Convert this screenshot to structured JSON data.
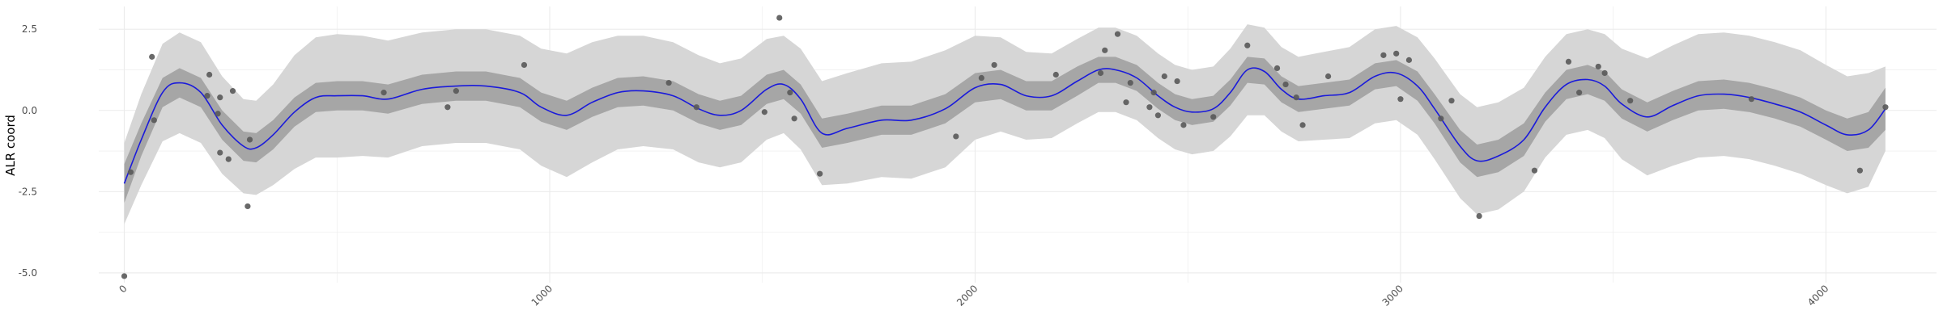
{
  "chart_data": {
    "type": "scatter",
    "title": "",
    "xlabel": "",
    "ylabel": "ALR coord",
    "xlim": [
      -60,
      4260
    ],
    "ylim": [
      -5.3,
      3.2
    ],
    "x_ticks": [
      0,
      1000,
      2000,
      3000,
      4000
    ],
    "x_tick_labels": [
      "0",
      "1000",
      "2000",
      "3000",
      "4000"
    ],
    "y_ticks": [
      -5.0,
      -2.5,
      0.0,
      2.5
    ],
    "y_tick_labels": [
      "-5.0",
      "-2.5",
      "0.0",
      "2.5"
    ],
    "grid": true,
    "legend": "none",
    "colors": {
      "points": "#595959",
      "fit_line": "#1a1adb",
      "inner_band": "#a6a6a6",
      "outer_band": "#d6d6d6",
      "grid": "#ebebeb"
    },
    "points": [
      {
        "x": 0,
        "y": -5.1
      },
      {
        "x": 15,
        "y": -1.9
      },
      {
        "x": 65,
        "y": 1.65
      },
      {
        "x": 70,
        "y": -0.3
      },
      {
        "x": 200,
        "y": 1.1
      },
      {
        "x": 195,
        "y": 0.45
      },
      {
        "x": 220,
        "y": -0.1
      },
      {
        "x": 225,
        "y": -1.3
      },
      {
        "x": 225,
        "y": 0.4
      },
      {
        "x": 245,
        "y": -1.5
      },
      {
        "x": 255,
        "y": 0.6
      },
      {
        "x": 290,
        "y": -2.95
      },
      {
        "x": 295,
        "y": -0.9
      },
      {
        "x": 610,
        "y": 0.55
      },
      {
        "x": 760,
        "y": 0.1
      },
      {
        "x": 780,
        "y": 0.6
      },
      {
        "x": 940,
        "y": 1.4
      },
      {
        "x": 1280,
        "y": 0.85
      },
      {
        "x": 1345,
        "y": 0.1
      },
      {
        "x": 1505,
        "y": -0.05
      },
      {
        "x": 1540,
        "y": 2.85
      },
      {
        "x": 1565,
        "y": 0.55
      },
      {
        "x": 1575,
        "y": -0.25
      },
      {
        "x": 1635,
        "y": -1.95
      },
      {
        "x": 1955,
        "y": -0.8
      },
      {
        "x": 2015,
        "y": 1.0
      },
      {
        "x": 2045,
        "y": 1.4
      },
      {
        "x": 2190,
        "y": 1.1
      },
      {
        "x": 2295,
        "y": 1.15
      },
      {
        "x": 2305,
        "y": 1.85
      },
      {
        "x": 2335,
        "y": 2.35
      },
      {
        "x": 2355,
        "y": 0.25
      },
      {
        "x": 2365,
        "y": 0.85
      },
      {
        "x": 2410,
        "y": 0.1
      },
      {
        "x": 2420,
        "y": 0.55
      },
      {
        "x": 2430,
        "y": -0.15
      },
      {
        "x": 2445,
        "y": 1.05
      },
      {
        "x": 2475,
        "y": 0.9
      },
      {
        "x": 2490,
        "y": -0.45
      },
      {
        "x": 2560,
        "y": -0.2
      },
      {
        "x": 2640,
        "y": 2.0
      },
      {
        "x": 2710,
        "y": 1.3
      },
      {
        "x": 2730,
        "y": 0.8
      },
      {
        "x": 2755,
        "y": 0.4
      },
      {
        "x": 2770,
        "y": -0.45
      },
      {
        "x": 2830,
        "y": 1.05
      },
      {
        "x": 2960,
        "y": 1.7
      },
      {
        "x": 2990,
        "y": 1.75
      },
      {
        "x": 3000,
        "y": 0.35
      },
      {
        "x": 3020,
        "y": 1.55
      },
      {
        "x": 3095,
        "y": -0.25
      },
      {
        "x": 3120,
        "y": 0.3
      },
      {
        "x": 3185,
        "y": -3.25
      },
      {
        "x": 3315,
        "y": -1.85
      },
      {
        "x": 3395,
        "y": 1.5
      },
      {
        "x": 3420,
        "y": 0.55
      },
      {
        "x": 3465,
        "y": 1.35
      },
      {
        "x": 3480,
        "y": 1.15
      },
      {
        "x": 3540,
        "y": 0.3
      },
      {
        "x": 3825,
        "y": 0.35
      },
      {
        "x": 4080,
        "y": -1.85
      },
      {
        "x": 4140,
        "y": 0.1
      }
    ],
    "fit": {
      "x": [
        0,
        40,
        90,
        130,
        180,
        230,
        280,
        310,
        350,
        400,
        450,
        500,
        560,
        620,
        700,
        780,
        850,
        930,
        980,
        1040,
        1100,
        1160,
        1220,
        1290,
        1350,
        1400,
        1450,
        1510,
        1550,
        1590,
        1640,
        1700,
        1780,
        1850,
        1930,
        2000,
        2060,
        2120,
        2180,
        2240,
        2290,
        2330,
        2380,
        2430,
        2470,
        2510,
        2560,
        2600,
        2640,
        2680,
        2720,
        2760,
        2820,
        2880,
        2940,
        2990,
        3040,
        3080,
        3140,
        3180,
        3230,
        3290,
        3340,
        3390,
        3440,
        3480,
        3520,
        3580,
        3640,
        3700,
        3760,
        3820,
        3880,
        3940,
        4000,
        4050,
        4100,
        4140
      ],
      "y": [
        -2.25,
        -0.9,
        0.55,
        0.85,
        0.55,
        -0.45,
        -1.1,
        -1.15,
        -0.75,
        -0.05,
        0.4,
        0.45,
        0.45,
        0.35,
        0.65,
        0.75,
        0.75,
        0.55,
        0.1,
        -0.15,
        0.25,
        0.55,
        0.6,
        0.45,
        0.05,
        -0.15,
        0.0,
        0.65,
        0.8,
        0.35,
        -0.7,
        -0.55,
        -0.3,
        -0.3,
        0.05,
        0.7,
        0.8,
        0.45,
        0.45,
        0.9,
        1.25,
        1.25,
        1.0,
        0.45,
        0.1,
        -0.05,
        0.05,
        0.55,
        1.25,
        1.2,
        0.65,
        0.35,
        0.45,
        0.55,
        1.05,
        1.15,
        0.75,
        0.05,
        -1.1,
        -1.55,
        -1.4,
        -0.9,
        0.1,
        0.8,
        0.95,
        0.75,
        0.2,
        -0.2,
        0.15,
        0.45,
        0.5,
        0.4,
        0.2,
        -0.05,
        -0.45,
        -0.75,
        -0.6,
        0.05
      ],
      "inner": [
        0.6,
        0.5,
        0.45,
        0.45,
        0.45,
        0.45,
        0.45,
        0.45,
        0.45,
        0.45,
        0.45,
        0.45,
        0.45,
        0.45,
        0.45,
        0.45,
        0.45,
        0.45,
        0.45,
        0.45,
        0.45,
        0.45,
        0.45,
        0.45,
        0.45,
        0.45,
        0.45,
        0.45,
        0.45,
        0.45,
        0.45,
        0.45,
        0.45,
        0.45,
        0.45,
        0.45,
        0.45,
        0.45,
        0.45,
        0.45,
        0.4,
        0.4,
        0.4,
        0.4,
        0.4,
        0.4,
        0.4,
        0.4,
        0.4,
        0.4,
        0.4,
        0.4,
        0.4,
        0.4,
        0.4,
        0.4,
        0.45,
        0.45,
        0.5,
        0.5,
        0.5,
        0.5,
        0.45,
        0.45,
        0.45,
        0.45,
        0.45,
        0.45,
        0.45,
        0.45,
        0.45,
        0.45,
        0.45,
        0.45,
        0.45,
        0.5,
        0.55,
        0.65
      ],
      "outer": [
        1.25,
        1.4,
        1.5,
        1.55,
        1.55,
        1.5,
        1.45,
        1.45,
        1.55,
        1.75,
        1.85,
        1.9,
        1.85,
        1.8,
        1.75,
        1.75,
        1.75,
        1.75,
        1.8,
        1.9,
        1.85,
        1.75,
        1.7,
        1.65,
        1.65,
        1.6,
        1.6,
        1.55,
        1.5,
        1.55,
        1.6,
        1.7,
        1.75,
        1.8,
        1.8,
        1.6,
        1.45,
        1.35,
        1.3,
        1.3,
        1.3,
        1.3,
        1.3,
        1.3,
        1.3,
        1.3,
        1.3,
        1.35,
        1.4,
        1.35,
        1.3,
        1.3,
        1.35,
        1.4,
        1.45,
        1.45,
        1.5,
        1.55,
        1.6,
        1.65,
        1.65,
        1.6,
        1.55,
        1.55,
        1.55,
        1.6,
        1.7,
        1.8,
        1.85,
        1.9,
        1.9,
        1.9,
        1.9,
        1.9,
        1.85,
        1.8,
        1.75,
        1.3
      ]
    }
  }
}
